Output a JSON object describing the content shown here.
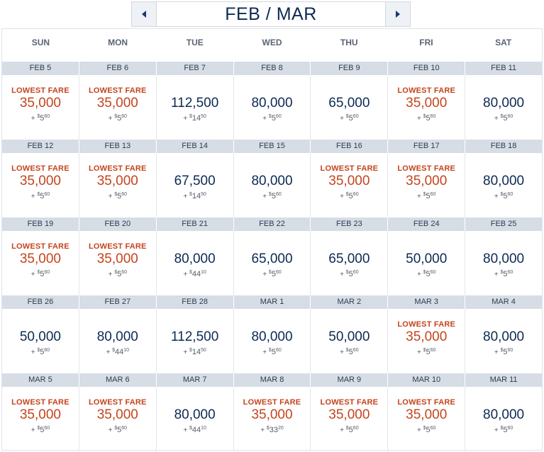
{
  "header": {
    "title": "FEB / MAR",
    "prev_icon": "caret-left-icon",
    "next_icon": "caret-right-icon"
  },
  "colors": {
    "accent": "#c4441c",
    "primary": "#0c2a53",
    "date_bar": "#d7dde5"
  },
  "lowest_label": "LOWEST FARE",
  "weekdays": [
    "SUN",
    "MON",
    "TUE",
    "WED",
    "THU",
    "FRI",
    "SAT"
  ],
  "weeks": [
    {
      "dates": [
        "FEB 5",
        "FEB 6",
        "FEB 7",
        "FEB 8",
        "FEB 9",
        "FEB 10",
        "FEB 11"
      ],
      "cells": [
        {
          "lowest": true,
          "miles": "35,000",
          "tax": {
            "cur": "$",
            "dollars": "5",
            "cents": "60"
          }
        },
        {
          "lowest": true,
          "miles": "35,000",
          "tax": {
            "cur": "$",
            "dollars": "5",
            "cents": "60"
          }
        },
        {
          "lowest": false,
          "miles": "112,500",
          "tax": {
            "cur": "$",
            "dollars": "14",
            "cents": "50"
          }
        },
        {
          "lowest": false,
          "miles": "80,000",
          "tax": {
            "cur": "$",
            "dollars": "5",
            "cents": "60"
          }
        },
        {
          "lowest": false,
          "miles": "65,000",
          "tax": {
            "cur": "$",
            "dollars": "5",
            "cents": "60"
          }
        },
        {
          "lowest": true,
          "miles": "35,000",
          "tax": {
            "cur": "$",
            "dollars": "5",
            "cents": "60"
          }
        },
        {
          "lowest": false,
          "miles": "80,000",
          "tax": {
            "cur": "$",
            "dollars": "5",
            "cents": "60"
          }
        }
      ]
    },
    {
      "dates": [
        "FEB 12",
        "FEB 13",
        "FEB 14",
        "FEB 15",
        "FEB 16",
        "FEB 17",
        "FEB 18"
      ],
      "cells": [
        {
          "lowest": true,
          "miles": "35,000",
          "tax": {
            "cur": "$",
            "dollars": "5",
            "cents": "60"
          }
        },
        {
          "lowest": true,
          "miles": "35,000",
          "tax": {
            "cur": "$",
            "dollars": "5",
            "cents": "60"
          }
        },
        {
          "lowest": false,
          "miles": "67,500",
          "tax": {
            "cur": "$",
            "dollars": "14",
            "cents": "50"
          }
        },
        {
          "lowest": false,
          "miles": "80,000",
          "tax": {
            "cur": "$",
            "dollars": "5",
            "cents": "60"
          }
        },
        {
          "lowest": true,
          "miles": "35,000",
          "tax": {
            "cur": "$",
            "dollars": "5",
            "cents": "60"
          }
        },
        {
          "lowest": true,
          "miles": "35,000",
          "tax": {
            "cur": "$",
            "dollars": "5",
            "cents": "60"
          }
        },
        {
          "lowest": false,
          "miles": "80,000",
          "tax": {
            "cur": "$",
            "dollars": "5",
            "cents": "60"
          }
        }
      ]
    },
    {
      "dates": [
        "FEB 19",
        "FEB 20",
        "FEB 21",
        "FEB 22",
        "FEB 23",
        "FEB 24",
        "FEB 25"
      ],
      "cells": [
        {
          "lowest": true,
          "miles": "35,000",
          "tax": {
            "cur": "$",
            "dollars": "5",
            "cents": "60"
          }
        },
        {
          "lowest": true,
          "miles": "35,000",
          "tax": {
            "cur": "$",
            "dollars": "5",
            "cents": "60"
          }
        },
        {
          "lowest": false,
          "miles": "80,000",
          "tax": {
            "cur": "$",
            "dollars": "44",
            "cents": "10"
          }
        },
        {
          "lowest": false,
          "miles": "65,000",
          "tax": {
            "cur": "$",
            "dollars": "5",
            "cents": "60"
          }
        },
        {
          "lowest": false,
          "miles": "65,000",
          "tax": {
            "cur": "$",
            "dollars": "5",
            "cents": "60"
          }
        },
        {
          "lowest": false,
          "miles": "50,000",
          "tax": {
            "cur": "$",
            "dollars": "5",
            "cents": "60"
          }
        },
        {
          "lowest": false,
          "miles": "80,000",
          "tax": {
            "cur": "$",
            "dollars": "5",
            "cents": "60"
          }
        }
      ]
    },
    {
      "dates": [
        "FEB 26",
        "FEB 27",
        "FEB 28",
        "MAR 1",
        "MAR 2",
        "MAR 3",
        "MAR 4"
      ],
      "cells": [
        {
          "lowest": false,
          "miles": "50,000",
          "tax": {
            "cur": "$",
            "dollars": "5",
            "cents": "60"
          }
        },
        {
          "lowest": false,
          "miles": "80,000",
          "tax": {
            "cur": "$",
            "dollars": "44",
            "cents": "10"
          }
        },
        {
          "lowest": false,
          "miles": "112,500",
          "tax": {
            "cur": "$",
            "dollars": "14",
            "cents": "50"
          }
        },
        {
          "lowest": false,
          "miles": "80,000",
          "tax": {
            "cur": "$",
            "dollars": "5",
            "cents": "60"
          }
        },
        {
          "lowest": false,
          "miles": "50,000",
          "tax": {
            "cur": "$",
            "dollars": "5",
            "cents": "60"
          }
        },
        {
          "lowest": true,
          "miles": "35,000",
          "tax": {
            "cur": "$",
            "dollars": "5",
            "cents": "60"
          }
        },
        {
          "lowest": false,
          "miles": "80,000",
          "tax": {
            "cur": "$",
            "dollars": "5",
            "cents": "60"
          }
        }
      ]
    },
    {
      "dates": [
        "MAR 5",
        "MAR 6",
        "MAR 7",
        "MAR 8",
        "MAR 9",
        "MAR 10",
        "MAR 11"
      ],
      "cells": [
        {
          "lowest": true,
          "miles": "35,000",
          "tax": {
            "cur": "$",
            "dollars": "5",
            "cents": "60"
          }
        },
        {
          "lowest": true,
          "miles": "35,000",
          "tax": {
            "cur": "$",
            "dollars": "5",
            "cents": "60"
          }
        },
        {
          "lowest": false,
          "miles": "80,000",
          "tax": {
            "cur": "$",
            "dollars": "44",
            "cents": "10"
          }
        },
        {
          "lowest": true,
          "miles": "35,000",
          "tax": {
            "cur": "$",
            "dollars": "33",
            "cents": "20"
          }
        },
        {
          "lowest": true,
          "miles": "35,000",
          "tax": {
            "cur": "$",
            "dollars": "5",
            "cents": "60"
          }
        },
        {
          "lowest": true,
          "miles": "35,000",
          "tax": {
            "cur": "$",
            "dollars": "5",
            "cents": "60"
          }
        },
        {
          "lowest": false,
          "miles": "80,000",
          "tax": {
            "cur": "$",
            "dollars": "5",
            "cents": "60"
          }
        }
      ]
    }
  ]
}
